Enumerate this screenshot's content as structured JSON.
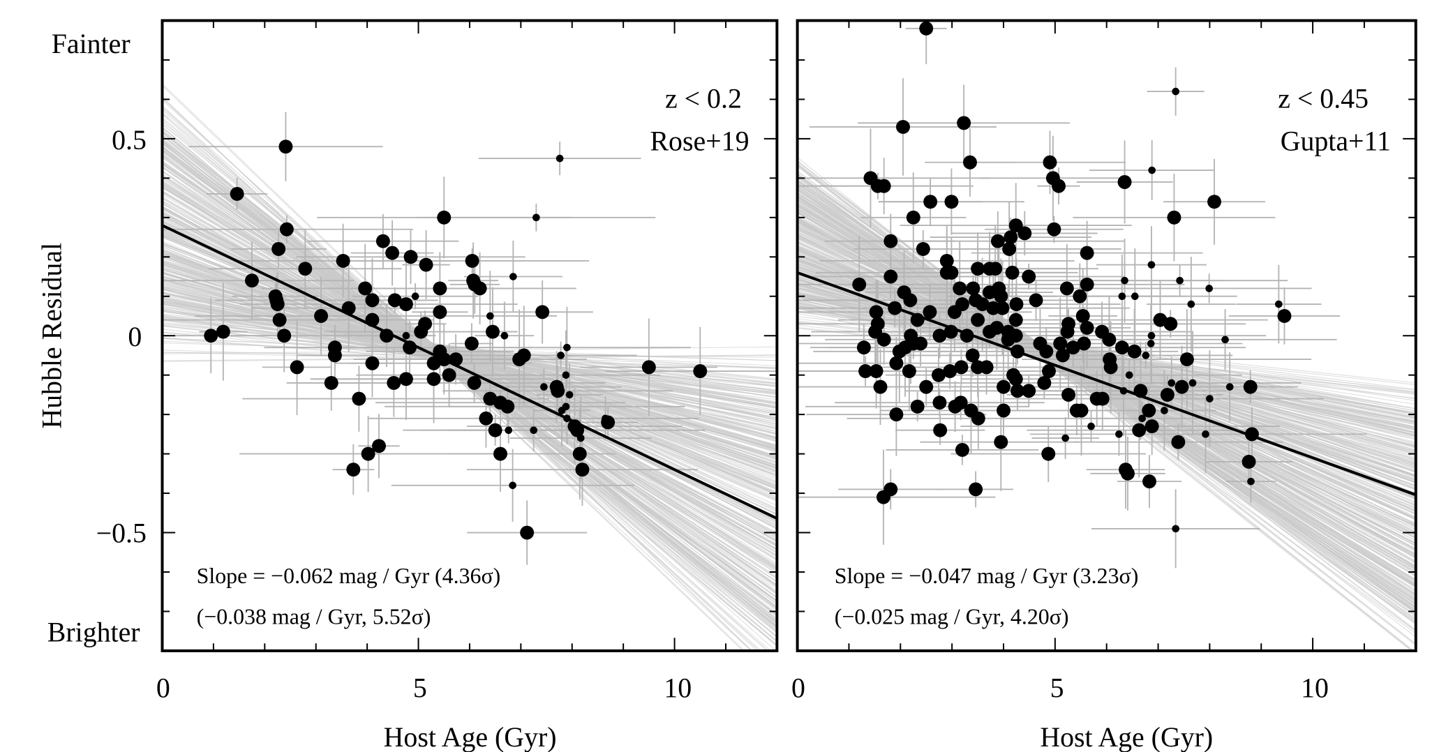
{
  "chart_data": [
    {
      "type": "scatter",
      "panel": "left",
      "xlabel": "Host Age (Gyr)",
      "ylabel": "Hubble Residual",
      "ylabel_top": "Fainter",
      "ylabel_bottom": "Brighter",
      "xlim": [
        0,
        12
      ],
      "ylim": [
        -0.8,
        0.8
      ],
      "xticks": [
        "0",
        "5",
        "10"
      ],
      "yticks": [
        "0.5",
        "0",
        "−0.5"
      ],
      "annotation_line1": "z < 0.2",
      "annotation_line2": "Rose+19",
      "slope_text": "Slope = −0.062 mag / Gyr (4.36σ)",
      "slope_text2": "(−0.038 mag / Gyr, 5.52σ)",
      "fit_line": {
        "intercept": 0.28,
        "slope": -0.062,
        "color": "#000000"
      },
      "mcmc_band": {
        "pivot": [
          5.3,
          -0.04
        ],
        "slope_range": [
          -0.125,
          0.002
        ],
        "color": "#c8c8c8"
      },
      "error_bar_color": "#b4b4b4",
      "marker_color": "#000000",
      "points_format": [
        "host_age",
        "hubble_residual",
        "large_marker"
      ],
      "points": [
        [
          0.95,
          0.0,
          1
        ],
        [
          1.19,
          0.01,
          1
        ],
        [
          1.46,
          0.36,
          1
        ],
        [
          1.75,
          0.14,
          1
        ],
        [
          2.41,
          0.48,
          1
        ],
        [
          2.43,
          0.27,
          1
        ],
        [
          2.27,
          0.22,
          1
        ],
        [
          2.23,
          0.09,
          1
        ],
        [
          2.21,
          0.1,
          1
        ],
        [
          2.25,
          0.08,
          1
        ],
        [
          2.29,
          0.04,
          1
        ],
        [
          2.38,
          0.0,
          1
        ],
        [
          2.63,
          -0.08,
          1
        ],
        [
          2.79,
          0.17,
          1
        ],
        [
          3.1,
          0.05,
          1
        ],
        [
          3.37,
          -0.05,
          1
        ],
        [
          3.37,
          -0.03,
          1
        ],
        [
          3.3,
          -0.12,
          1
        ],
        [
          3.53,
          0.19,
          1
        ],
        [
          3.64,
          0.07,
          1
        ],
        [
          3.84,
          -0.16,
          1
        ],
        [
          3.73,
          -0.34,
          1
        ],
        [
          4.02,
          -0.3,
          1
        ],
        [
          3.96,
          0.12,
          1
        ],
        [
          4.1,
          0.09,
          1
        ],
        [
          4.1,
          0.04,
          1
        ],
        [
          4.1,
          -0.07,
          1
        ],
        [
          4.23,
          -0.28,
          1
        ],
        [
          4.31,
          0.24,
          1
        ],
        [
          4.38,
          0.0,
          1
        ],
        [
          4.49,
          0.21,
          1
        ],
        [
          4.54,
          0.09,
          1
        ],
        [
          4.52,
          -0.12,
          1
        ],
        [
          4.76,
          0.08,
          1
        ],
        [
          4.76,
          -0.11,
          1
        ],
        [
          4.85,
          0.2,
          1
        ],
        [
          4.83,
          -0.03,
          1
        ],
        [
          4.94,
          0.1,
          0
        ],
        [
          4.76,
          0.0,
          0
        ],
        [
          5.15,
          0.18,
          1
        ],
        [
          5.05,
          0.01,
          1
        ],
        [
          5.13,
          0.03,
          1
        ],
        [
          5.3,
          -0.07,
          1
        ],
        [
          5.3,
          -0.11,
          1
        ],
        [
          5.5,
          0.3,
          1
        ],
        [
          5.42,
          0.12,
          1
        ],
        [
          5.42,
          0.06,
          1
        ],
        [
          5.42,
          -0.04,
          1
        ],
        [
          5.5,
          -0.06,
          1
        ],
        [
          5.6,
          -0.1,
          1
        ],
        [
          5.73,
          -0.06,
          1
        ],
        [
          6.05,
          0.19,
          1
        ],
        [
          6.07,
          0.14,
          1
        ],
        [
          6.09,
          -0.12,
          1
        ],
        [
          6.04,
          -0.02,
          1
        ],
        [
          6.1,
          0.13,
          1
        ],
        [
          6.2,
          0.12,
          1
        ],
        [
          6.4,
          0.05,
          0
        ],
        [
          6.45,
          0.01,
          1
        ],
        [
          6.32,
          -0.21,
          1
        ],
        [
          6.4,
          -0.16,
          1
        ],
        [
          6.5,
          -0.24,
          1
        ],
        [
          6.6,
          -0.3,
          1
        ],
        [
          6.68,
          0.0,
          0
        ],
        [
          6.6,
          -0.17,
          1
        ],
        [
          6.74,
          -0.18,
          1
        ],
        [
          6.76,
          -0.24,
          0
        ],
        [
          6.84,
          -0.38,
          0
        ],
        [
          6.85,
          0.15,
          0
        ],
        [
          7.12,
          -0.5,
          1
        ],
        [
          6.97,
          -0.06,
          1
        ],
        [
          7.06,
          -0.05,
          1
        ],
        [
          7.3,
          0.3,
          0
        ],
        [
          7.42,
          0.06,
          1
        ],
        [
          7.76,
          0.45,
          0
        ],
        [
          7.25,
          -0.24,
          0
        ],
        [
          7.7,
          -0.13,
          1
        ],
        [
          7.72,
          -0.14,
          1
        ],
        [
          7.45,
          -0.13,
          0
        ],
        [
          7.78,
          -0.05,
          0
        ],
        [
          7.9,
          -0.03,
          0
        ],
        [
          7.88,
          -0.1,
          0
        ],
        [
          7.8,
          -0.19,
          0
        ],
        [
          7.88,
          -0.18,
          0
        ],
        [
          7.9,
          -0.21,
          0
        ],
        [
          8.05,
          -0.23,
          1
        ],
        [
          8.1,
          -0.24,
          1
        ],
        [
          8.15,
          -0.3,
          1
        ],
        [
          8.2,
          -0.34,
          1
        ],
        [
          7.95,
          -0.15,
          0
        ],
        [
          8.17,
          -0.26,
          0
        ],
        [
          8.65,
          -0.21,
          0
        ],
        [
          8.7,
          -0.22,
          1
        ],
        [
          9.5,
          -0.08,
          1
        ],
        [
          10.5,
          -0.09,
          1
        ]
      ]
    },
    {
      "type": "scatter",
      "panel": "right",
      "xlabel": "Host Age (Gyr)",
      "xlim": [
        0,
        12
      ],
      "ylim": [
        -0.8,
        0.8
      ],
      "xticks": [
        "0",
        "5",
        "10"
      ],
      "annotation_line1": "z < 0.45",
      "annotation_line2": "Gupta+11",
      "slope_text": "Slope = −0.047 mag / Gyr (3.23σ)",
      "slope_text2": "(−0.025 mag / Gyr, 4.20σ)",
      "fit_line": {
        "intercept": 0.16,
        "slope": -0.047,
        "color": "#000000"
      },
      "mcmc_band": {
        "pivot": [
          4.6,
          -0.03
        ],
        "slope_range": [
          -0.105,
          -0.012
        ],
        "color": "#c8c8c8"
      },
      "error_bar_color": "#b4b4b4",
      "marker_color": "#000000",
      "points_format": [
        "host_age",
        "hubble_residual",
        "large_marker"
      ],
      "points": [
        [
          2.5,
          0.78,
          1
        ],
        [
          2.05,
          0.53,
          1
        ],
        [
          3.23,
          0.54,
          1
        ],
        [
          3.35,
          0.44,
          1
        ],
        [
          1.42,
          0.4,
          1
        ],
        [
          1.56,
          0.38,
          1
        ],
        [
          1.68,
          0.38,
          1
        ],
        [
          4.9,
          0.44,
          1
        ],
        [
          4.96,
          0.4,
          1
        ],
        [
          5.07,
          0.38,
          1
        ],
        [
          7.34,
          0.62,
          0
        ],
        [
          6.88,
          0.42,
          0
        ],
        [
          6.35,
          0.39,
          1
        ],
        [
          8.09,
          0.34,
          1
        ],
        [
          2.58,
          0.34,
          1
        ],
        [
          2.99,
          0.34,
          1
        ],
        [
          2.25,
          0.3,
          1
        ],
        [
          7.31,
          0.3,
          1
        ],
        [
          4.98,
          0.27,
          1
        ],
        [
          4.24,
          0.28,
          1
        ],
        [
          1.81,
          0.24,
          1
        ],
        [
          2.44,
          0.22,
          1
        ],
        [
          3.89,
          0.24,
          1
        ],
        [
          4.14,
          0.25,
          1
        ],
        [
          4.11,
          0.22,
          1
        ],
        [
          4.41,
          0.26,
          1
        ],
        [
          5.62,
          0.21,
          1
        ],
        [
          2.9,
          0.19,
          1
        ],
        [
          2.9,
          0.16,
          1
        ],
        [
          2.99,
          0.16,
          1
        ],
        [
          3.5,
          0.17,
          1
        ],
        [
          3.73,
          0.17,
          1
        ],
        [
          3.84,
          0.17,
          1
        ],
        [
          4.17,
          0.16,
          1
        ],
        [
          4.49,
          0.15,
          1
        ],
        [
          6.87,
          0.18,
          0
        ],
        [
          7.42,
          0.14,
          0
        ],
        [
          1.81,
          0.15,
          1
        ],
        [
          1.2,
          0.13,
          1
        ],
        [
          5.23,
          0.12,
          1
        ],
        [
          5.48,
          0.1,
          1
        ],
        [
          5.62,
          0.13,
          1
        ],
        [
          6.35,
          0.14,
          0
        ],
        [
          6.3,
          0.1,
          0
        ],
        [
          6.55,
          0.1,
          0
        ],
        [
          7.99,
          0.12,
          0
        ],
        [
          7.64,
          0.08,
          0
        ],
        [
          4.63,
          0.09,
          1
        ],
        [
          3.15,
          0.12,
          1
        ],
        [
          3.41,
          0.12,
          1
        ],
        [
          3.73,
          0.11,
          1
        ],
        [
          3.91,
          0.12,
          1
        ],
        [
          3.95,
          0.1,
          1
        ],
        [
          2.07,
          0.11,
          1
        ],
        [
          2.19,
          0.09,
          1
        ],
        [
          1.89,
          0.07,
          1
        ],
        [
          1.53,
          0.06,
          1
        ],
        [
          2.57,
          0.06,
          1
        ],
        [
          2.33,
          0.04,
          1
        ],
        [
          3.05,
          0.06,
          1
        ],
        [
          3.2,
          0.08,
          1
        ],
        [
          3.46,
          0.09,
          1
        ],
        [
          3.59,
          0.08,
          1
        ],
        [
          3.8,
          0.07,
          1
        ],
        [
          3.98,
          0.07,
          1
        ],
        [
          4.25,
          0.08,
          1
        ],
        [
          3.5,
          0.04,
          1
        ],
        [
          4.24,
          0.04,
          1
        ],
        [
          5.26,
          0.03,
          1
        ],
        [
          5.54,
          0.05,
          1
        ],
        [
          7.04,
          0.04,
          1
        ],
        [
          7.24,
          0.03,
          1
        ],
        [
          9.34,
          0.08,
          0
        ],
        [
          9.45,
          0.05,
          1
        ],
        [
          1.56,
          0.03,
          1
        ],
        [
          1.51,
          0.01,
          1
        ],
        [
          1.68,
          -0.01,
          1
        ],
        [
          1.29,
          -0.03,
          1
        ],
        [
          1.92,
          -0.07,
          1
        ],
        [
          1.98,
          -0.04,
          1
        ],
        [
          2.09,
          -0.03,
          1
        ],
        [
          2.2,
          0.0,
          1
        ],
        [
          2.25,
          -0.02,
          1
        ],
        [
          2.39,
          -0.02,
          1
        ],
        [
          2.17,
          -0.09,
          1
        ],
        [
          1.32,
          -0.09,
          1
        ],
        [
          1.53,
          -0.09,
          1
        ],
        [
          1.61,
          -0.13,
          1
        ],
        [
          1.92,
          -0.2,
          1
        ],
        [
          2.33,
          -0.18,
          1
        ],
        [
          2.76,
          0.0,
          1
        ],
        [
          2.74,
          -0.1,
          1
        ],
        [
          2.98,
          0.01,
          1
        ],
        [
          2.96,
          -0.09,
          1
        ],
        [
          2.5,
          -0.13,
          1
        ],
        [
          2.76,
          -0.17,
          1
        ],
        [
          3.06,
          -0.18,
          1
        ],
        [
          3.17,
          -0.17,
          1
        ],
        [
          3.37,
          -0.19,
          1
        ],
        [
          3.51,
          -0.21,
          1
        ],
        [
          2.77,
          -0.24,
          1
        ],
        [
          3.2,
          -0.29,
          1
        ],
        [
          3.18,
          -0.08,
          1
        ],
        [
          3.29,
          0.0,
          1
        ],
        [
          3.4,
          -0.05,
          1
        ],
        [
          3.5,
          -0.08,
          1
        ],
        [
          3.67,
          -0.08,
          1
        ],
        [
          3.73,
          0.01,
          1
        ],
        [
          3.87,
          0.02,
          1
        ],
        [
          4.09,
          0.01,
          1
        ],
        [
          4.09,
          -0.01,
          1
        ],
        [
          4.24,
          0.0,
          1
        ],
        [
          4.0,
          -0.13,
          1
        ],
        [
          4.27,
          -0.14,
          1
        ],
        [
          4.19,
          -0.1,
          1
        ],
        [
          4.24,
          -0.11,
          1
        ],
        [
          4.0,
          -0.19,
          1
        ],
        [
          3.95,
          -0.27,
          1
        ],
        [
          4.27,
          -0.04,
          1
        ],
        [
          4.49,
          -0.14,
          1
        ],
        [
          4.71,
          -0.02,
          1
        ],
        [
          4.83,
          -0.04,
          1
        ],
        [
          4.79,
          -0.12,
          1
        ],
        [
          4.88,
          -0.09,
          1
        ],
        [
          4.87,
          -0.3,
          1
        ],
        [
          5.2,
          -0.26,
          0
        ],
        [
          5.26,
          -0.15,
          1
        ],
        [
          5.1,
          -0.02,
          1
        ],
        [
          5.15,
          -0.05,
          1
        ],
        [
          5.24,
          0.01,
          1
        ],
        [
          5.35,
          -0.03,
          1
        ],
        [
          5.56,
          -0.02,
          1
        ],
        [
          5.62,
          0.02,
          1
        ],
        [
          5.42,
          -0.19,
          1
        ],
        [
          5.51,
          -0.19,
          1
        ],
        [
          5.7,
          -0.23,
          0
        ],
        [
          5.81,
          -0.16,
          1
        ],
        [
          5.92,
          -0.16,
          1
        ],
        [
          5.91,
          0.01,
          1
        ],
        [
          6.05,
          -0.01,
          1
        ],
        [
          6.06,
          -0.06,
          1
        ],
        [
          6.08,
          -0.08,
          1
        ],
        [
          6.3,
          -0.03,
          1
        ],
        [
          6.54,
          -0.04,
          1
        ],
        [
          6.44,
          -0.1,
          0
        ],
        [
          6.33,
          -0.14,
          0
        ],
        [
          6.66,
          -0.14,
          1
        ],
        [
          6.76,
          -0.05,
          0
        ],
        [
          6.87,
          0.0,
          0
        ],
        [
          6.86,
          -0.02,
          0
        ],
        [
          6.82,
          -0.19,
          1
        ],
        [
          6.69,
          -0.21,
          0
        ],
        [
          6.63,
          -0.24,
          1
        ],
        [
          6.88,
          -0.23,
          1
        ],
        [
          6.24,
          -0.25,
          0
        ],
        [
          6.41,
          -0.35,
          1
        ],
        [
          6.37,
          -0.34,
          1
        ],
        [
          6.83,
          -0.37,
          1
        ],
        [
          7.12,
          -0.19,
          0
        ],
        [
          7.18,
          -0.15,
          1
        ],
        [
          7.46,
          -0.13,
          1
        ],
        [
          7.26,
          -0.12,
          0
        ],
        [
          7.56,
          -0.06,
          1
        ],
        [
          7.67,
          -0.12,
          0
        ],
        [
          7.39,
          -0.27,
          1
        ],
        [
          8.0,
          -0.16,
          0
        ],
        [
          7.92,
          -0.25,
          0
        ],
        [
          8.3,
          -0.01,
          0
        ],
        [
          8.39,
          -0.13,
          0
        ],
        [
          8.79,
          -0.13,
          1
        ],
        [
          8.82,
          -0.25,
          1
        ],
        [
          8.76,
          -0.32,
          1
        ],
        [
          8.8,
          -0.37,
          0
        ],
        [
          7.34,
          -0.49,
          0
        ],
        [
          3.46,
          -0.39,
          1
        ],
        [
          1.67,
          -0.41,
          1
        ],
        [
          1.81,
          -0.39,
          1
        ]
      ]
    }
  ]
}
